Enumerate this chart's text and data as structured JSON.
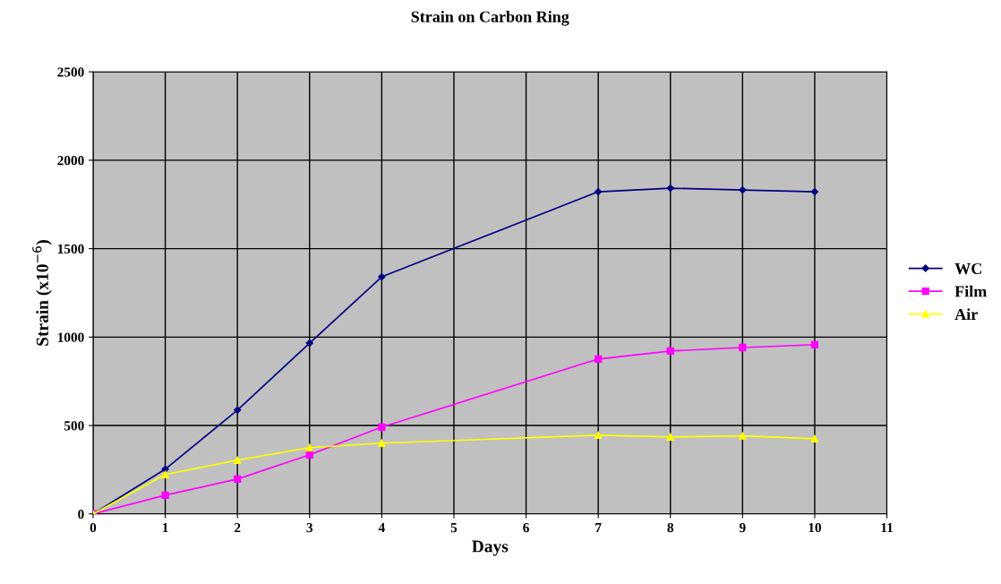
{
  "chart_data": {
    "type": "line",
    "title": "Strain on Carbon Ring",
    "xlabel": "Days",
    "ylabel": "Strain (x10$^{−6}$)",
    "x": [
      0,
      1,
      2,
      3,
      4,
      7,
      8,
      9,
      10
    ],
    "series": [
      {
        "name": "WC",
        "color": "#000080",
        "marker": "diamond",
        "values": [
          0,
          253,
          587,
          966,
          1341,
          1822,
          1842,
          1832,
          1822
        ]
      },
      {
        "name": "Film",
        "color": "#ff00ff",
        "marker": "square",
        "values": [
          0,
          106,
          197,
          334,
          491,
          876,
          921,
          941,
          957
        ]
      },
      {
        "name": "Air",
        "color": "#ffff00",
        "marker": "triangle",
        "values": [
          0,
          223,
          304,
          375,
          400,
          445,
          435,
          441,
          425
        ]
      }
    ],
    "xlim": [
      0,
      11
    ],
    "xticks": [
      0,
      1,
      2,
      3,
      4,
      5,
      6,
      7,
      8,
      9,
      10,
      11
    ],
    "ylim": [
      0,
      2500
    ],
    "yticks": [
      0,
      500,
      1000,
      1500,
      2000,
      2500
    ],
    "grid": true,
    "legend": "right",
    "line_style": "solid"
  }
}
